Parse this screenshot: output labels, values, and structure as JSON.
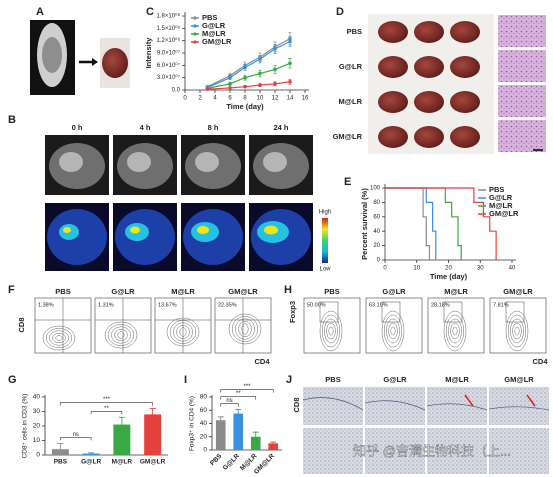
{
  "figure": {
    "panel_labels": [
      "A",
      "B",
      "C",
      "D",
      "E",
      "F",
      "G",
      "H",
      "I",
      "J"
    ],
    "B": {
      "times": [
        "0 h",
        "4 h",
        "8 h",
        "24 h"
      ],
      "colorbar": [
        "High",
        "Low"
      ]
    },
    "D": {
      "groups": [
        "PBS",
        "G@LR",
        "M@LR",
        "GM@LR"
      ]
    },
    "F": {
      "groups": [
        "PBS",
        "G@LR",
        "M@LR",
        "GM@LR"
      ],
      "percents": [
        "1.38%",
        "1.31%",
        "13.67%",
        "22.35%"
      ],
      "y_label": "CD8",
      "x_label": "CD4"
    },
    "H": {
      "groups": [
        "PBS",
        "G@LR",
        "M@LR",
        "GM@LR"
      ],
      "percents": [
        "50.00%",
        "63.10%",
        "28.18%",
        "7.81%"
      ],
      "y_label": "Foxp3",
      "x_label": "CD4"
    },
    "J": {
      "groups": [
        "PBS",
        "G@LR",
        "M@LR",
        "GM@LR"
      ],
      "y_label": "CD8"
    },
    "watermark": "知乎 @吉满生物科技（上..."
  },
  "chart_data": [
    {
      "type": "line",
      "x_label": "Time (day)",
      "y_label": "Intensity",
      "legend": "upper left",
      "markers": true,
      "x": [
        3,
        6,
        8,
        10,
        12,
        14
      ],
      "xlim": [
        0,
        16
      ],
      "xticks": [
        0,
        2,
        4,
        6,
        8,
        10,
        12,
        14,
        16
      ],
      "ylim": [
        0,
        180000000
      ],
      "yticks": [
        {
          "value": 0,
          "label": "0.0"
        },
        {
          "value": 30000000,
          "label": "3.0×10⁰⁷"
        },
        {
          "value": 60000000,
          "label": "6.0×10⁰⁷"
        },
        {
          "value": 90000000,
          "label": "9.0×10⁰⁷"
        },
        {
          "value": 120000000,
          "label": "1.2×10⁰⁸"
        },
        {
          "value": 150000000,
          "label": "1.5×10⁰⁸"
        },
        {
          "value": 180000000,
          "label": "1.8×10⁰⁸"
        }
      ],
      "series": [
        {
          "name": "PBS",
          "color": "#8c8c8c",
          "values": [
            8000000,
            35000000,
            60000000,
            80000000,
            105000000,
            125000000
          ],
          "errors": [
            2000000,
            5000000,
            8000000,
            10000000,
            12000000,
            15000000
          ]
        },
        {
          "name": "G@LR",
          "color": "#3b8fe0",
          "values": [
            6000000,
            30000000,
            55000000,
            75000000,
            100000000,
            118000000
          ],
          "errors": [
            2000000,
            5000000,
            7000000,
            9000000,
            11000000,
            12000000
          ]
        },
        {
          "name": "M@LR",
          "color": "#39a845",
          "values": [
            4000000,
            15000000,
            30000000,
            40000000,
            50000000,
            65000000
          ],
          "errors": [
            1000000,
            4000000,
            6000000,
            8000000,
            10000000,
            12000000
          ]
        },
        {
          "name": "GM@LR",
          "color": "#e5413b",
          "values": [
            2000000,
            5000000,
            8000000,
            12000000,
            15000000,
            20000000
          ],
          "errors": [
            1000000,
            2000000,
            3000000,
            4000000,
            5000000,
            6000000
          ]
        }
      ]
    },
    {
      "type": "line",
      "x_label": "Time (day)",
      "y_label": "Percent survival (%)",
      "legend": "upper right",
      "markers": false,
      "xlim": [
        0,
        40
      ],
      "xticks": [
        0,
        10,
        20,
        30,
        40
      ],
      "ylim": [
        0,
        100
      ],
      "yticks": [
        0,
        20,
        40,
        60,
        80,
        100
      ],
      "series": [
        {
          "name": "PBS",
          "color": "#8c8c8c",
          "x": [
            0,
            12,
            12,
            13,
            13,
            14,
            14
          ],
          "values": [
            100,
            100,
            60,
            60,
            20,
            20,
            0
          ]
        },
        {
          "name": "G@LR",
          "color": "#3b8fe0",
          "x": [
            0,
            13,
            13,
            15,
            15,
            16,
            16
          ],
          "values": [
            100,
            100,
            80,
            80,
            40,
            40,
            0
          ]
        },
        {
          "name": "M@LR",
          "color": "#39a845",
          "x": [
            0,
            19,
            19,
            21,
            21,
            23,
            23,
            24,
            24
          ],
          "values": [
            100,
            100,
            80,
            80,
            60,
            60,
            20,
            20,
            0
          ]
        },
        {
          "name": "GM@LR",
          "color": "#e5413b",
          "x": [
            0,
            28,
            28,
            31,
            31,
            33,
            33,
            35,
            35
          ],
          "values": [
            100,
            100,
            80,
            80,
            60,
            60,
            40,
            40,
            0
          ]
        }
      ]
    },
    {
      "type": "bar",
      "y_label": "CD8⁺ cells in CD3 (%)",
      "xtick_rotation": 0,
      "categories": [
        "PBS",
        "G@LR",
        "M@LR",
        "GM@LR"
      ],
      "values": [
        4,
        1,
        21,
        28
      ],
      "errors": [
        4,
        0.5,
        5,
        4
      ],
      "colors": [
        "#8c8c8c",
        "#3b8fe0",
        "#39a845",
        "#e5413b"
      ],
      "ylim": [
        0,
        40
      ],
      "yticks": [
        0,
        10,
        20,
        30,
        40
      ],
      "annotations": [
        "ns",
        "**",
        "***"
      ]
    },
    {
      "type": "bar",
      "y_label": "Foxp3⁺ in CD4 (%)",
      "xtick_rotation": -45,
      "categories": [
        "PBS",
        "G@LR",
        "M@LR",
        "GM@LR"
      ],
      "values": [
        45,
        55,
        20,
        10
      ],
      "errors": [
        5,
        6,
        7,
        2
      ],
      "colors": [
        "#8c8c8c",
        "#3b8fe0",
        "#39a845",
        "#e5413b"
      ],
      "ylim": [
        0,
        80
      ],
      "yticks": [
        0,
        20,
        40,
        60,
        80
      ],
      "annotations": [
        "ns",
        "**",
        "***"
      ]
    }
  ]
}
